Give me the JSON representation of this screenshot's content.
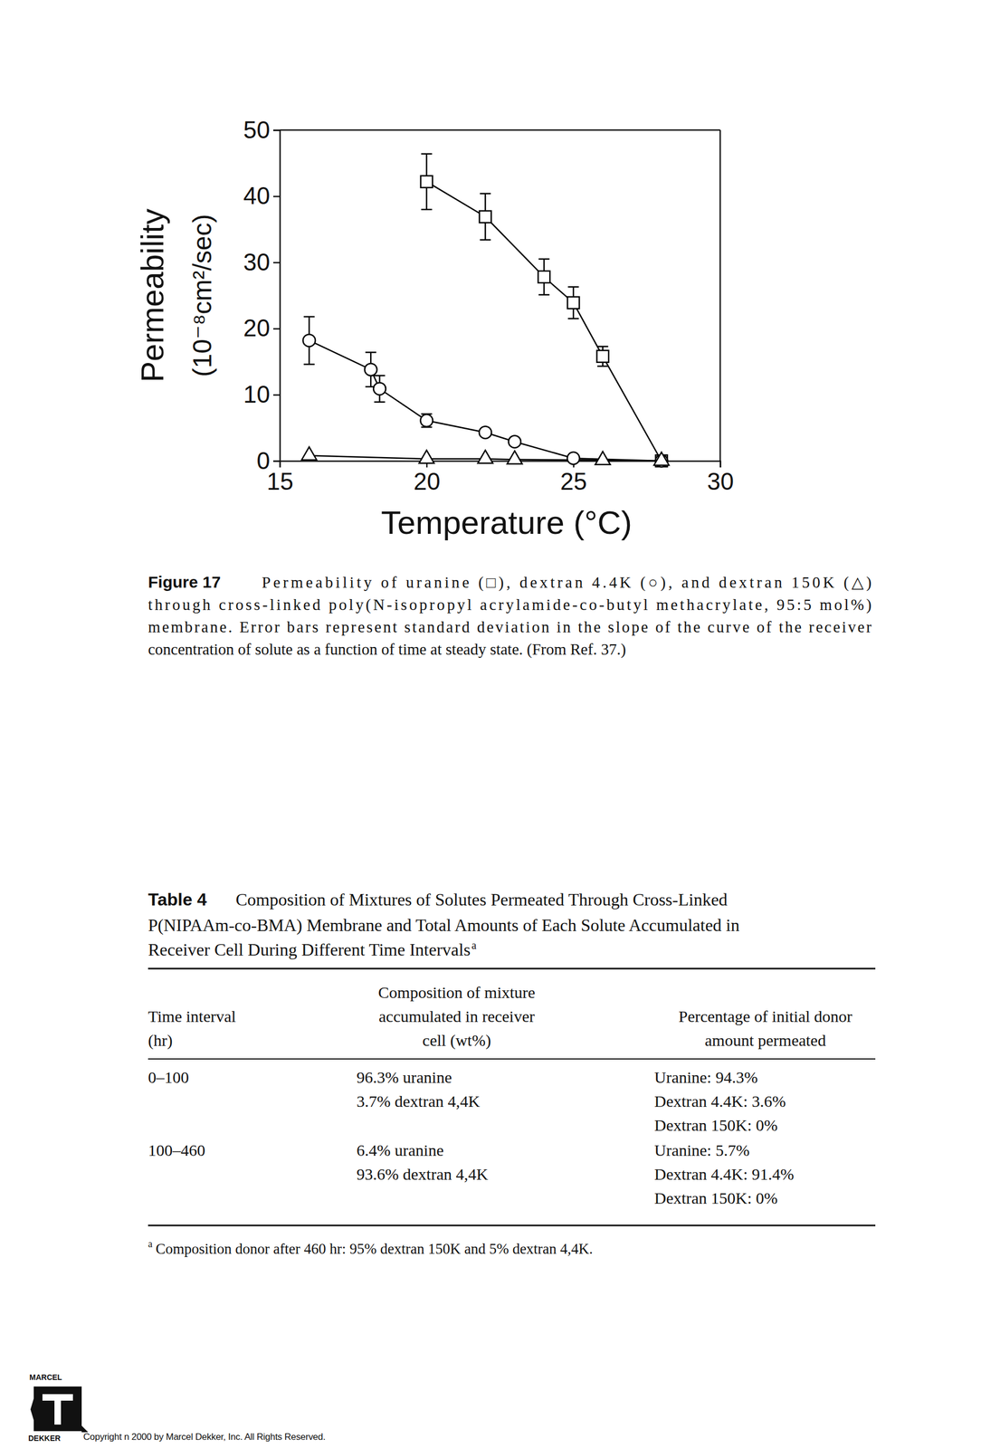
{
  "chart_data": {
    "type": "line",
    "x_label": "Temperature (°C)",
    "y_label": [
      "Permeability",
      "(10⁻⁸cm²/sec)"
    ],
    "xlim": [
      15,
      30
    ],
    "xticks": [
      15,
      20,
      25,
      30
    ],
    "ylim": [
      0,
      50
    ],
    "yticks": [
      0,
      10,
      20,
      30,
      40,
      50
    ],
    "series": [
      {
        "color": "#000000",
        "marker": "square",
        "line_style": "solid",
        "x": [
          20,
          22,
          24,
          25,
          26,
          28
        ],
        "values": [
          42.2,
          36.9,
          27.8,
          23.9,
          15.8,
          0
        ],
        "errors": [
          4.2,
          3.5,
          2.7,
          2.4,
          1.5,
          null
        ]
      },
      {
        "color": "#000000",
        "marker": "circle",
        "line_style": "solid",
        "x": [
          16,
          18.1,
          18.4,
          20,
          22,
          23,
          25,
          28
        ],
        "values": [
          18.2,
          13.8,
          10.9,
          6.1,
          4.3,
          2.9,
          0.4,
          0
        ],
        "errors": [
          3.6,
          2.6,
          2.0,
          1.0,
          null,
          null,
          null,
          null
        ]
      },
      {
        "color": "#000000",
        "marker": "triangle",
        "line_style": "solid",
        "x": [
          16,
          20,
          22,
          23,
          26,
          28
        ],
        "values": [
          0.8,
          0.3,
          0.3,
          0.2,
          0.1,
          0
        ]
      }
    ]
  },
  "caption": {
    "label": "Figure 17",
    "lines": [
      "Permeability of uranine (□), dextran 4.4K (○), and dextran 150K (△)",
      "through cross-linked poly(N-isopropyl acrylamide-co-butyl methacrylate, 95:5 mol%)",
      "membrane. Error bars represent standard deviation in the slope of the curve of the receiver",
      "concentration of solute as a function of time at steady state. (From Ref. 37.)"
    ]
  },
  "table": {
    "label": "Table 4",
    "title_lines": [
      "Composition of Mixtures of Solutes Permeated Through Cross-Linked",
      "P(NIPAAm-co-BMA) Membrane and Total Amounts of Each Solute Accumulated in",
      "Receiver Cell During Different Time Intervals"
    ],
    "note_marker": "a",
    "header": [
      [
        "Time interval",
        "(hr)"
      ],
      [
        "Composition of mixture",
        "accumulated in receiver",
        "cell (wt%)"
      ],
      [
        "Percentage of initial donor",
        "amount permeated"
      ]
    ],
    "rows": [
      [
        [
          "0–100"
        ],
        [
          "96.3% uranine",
          "3.7% dextran 4,4K"
        ],
        [
          "Uranine: 94.3%",
          "Dextran 4.4K: 3.6%",
          "Dextran 150K: 0%"
        ]
      ],
      [
        [
          "100–460"
        ],
        [
          "6.4% uranine",
          "93.6% dextran 4,4K"
        ],
        [
          "Uranine: 5.7%",
          "Dextran 4.4K: 91.4%",
          "Dextran 150K: 0%"
        ]
      ]
    ],
    "footnote": "Composition donor after 460 hr: 95% dextran 150K and 5% dextran 4,4K."
  },
  "footer": {
    "publisher_top": "MARCEL",
    "publisher_bottom": "DEKKER",
    "copyright": "Copyright n 2000 by Marcel Dekker, Inc. All Rights Reserved."
  }
}
